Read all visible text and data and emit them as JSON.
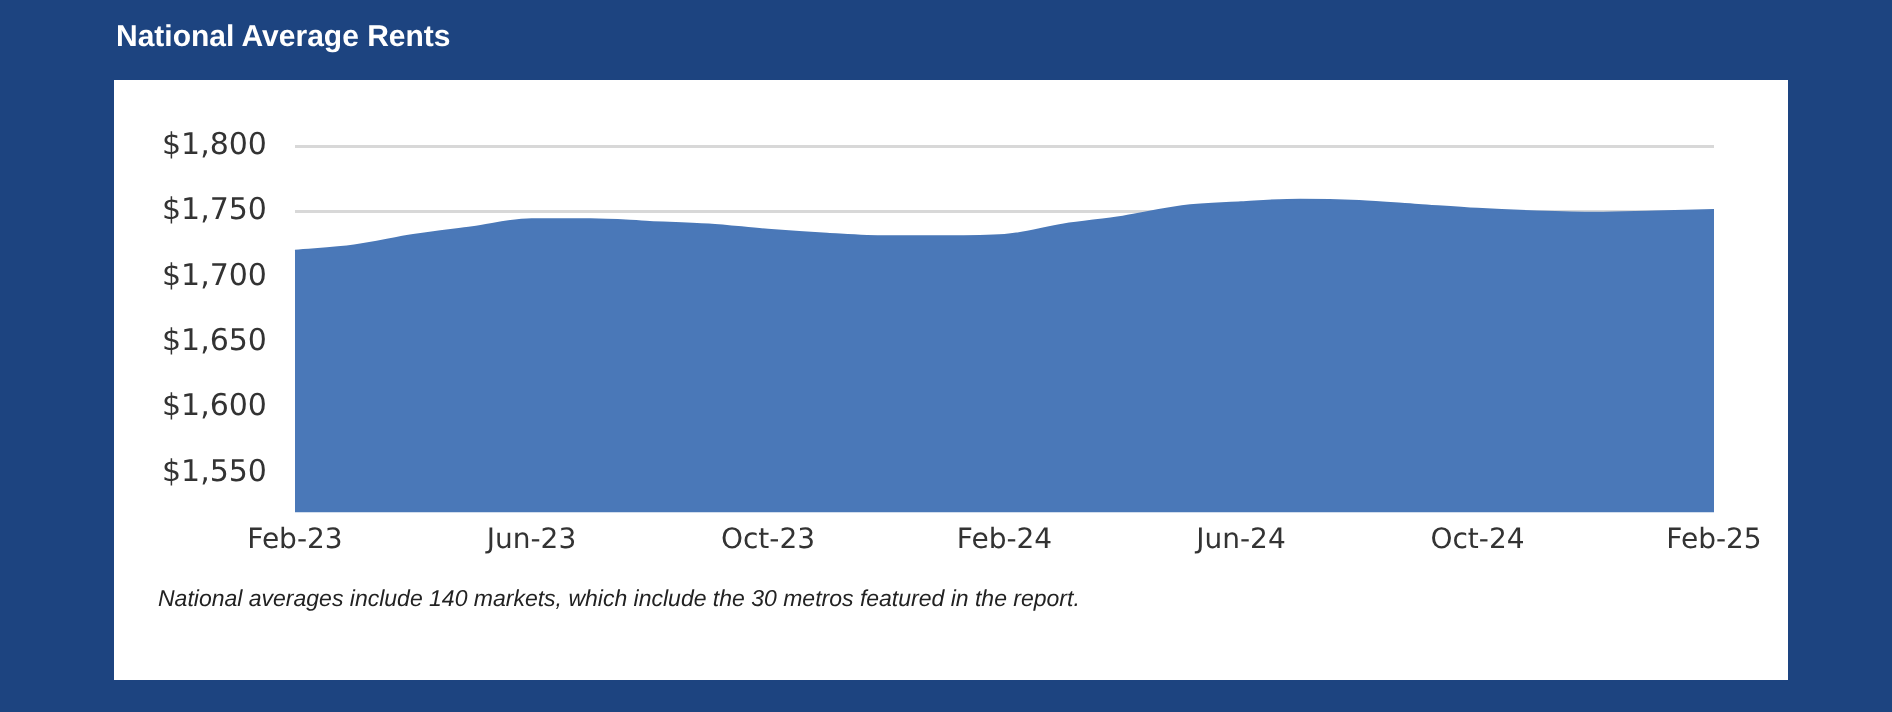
{
  "chart_data": {
    "type": "area",
    "title": "National Average Rents",
    "categories": [
      "Feb-23",
      null,
      null,
      null,
      "Jun-23",
      null,
      null,
      null,
      "Oct-23",
      null,
      null,
      null,
      "Feb-24",
      null,
      null,
      null,
      "Jun-24",
      null,
      null,
      null,
      "Oct-24",
      null,
      null,
      null,
      "Feb-25"
    ],
    "series": [
      {
        "color": "#4a78b8",
        "values": [
          1720,
          1724,
          1732,
          1738,
          1744,
          1744,
          1742,
          1740,
          1736,
          1733,
          1731,
          1731,
          1732,
          1740,
          1746,
          1754,
          1757,
          1759,
          1758,
          1755,
          1752,
          1750,
          1749,
          1750,
          1751
        ]
      }
    ],
    "ylim": [
      1520,
      1800
    ],
    "yticks": [
      {
        "value": 1550,
        "label": "$1,550"
      },
      {
        "value": 1600,
        "label": "$1,600"
      },
      {
        "value": 1650,
        "label": "$1,650"
      },
      {
        "value": 1700,
        "label": "$1,700"
      },
      {
        "value": 1750,
        "label": "$1,750"
      },
      {
        "value": 1800,
        "label": "$1,800"
      }
    ],
    "grid": "y",
    "legend": false,
    "annotations": [
      "National averages include 140 markets, which include the 30 metros featured in the report."
    ]
  }
}
